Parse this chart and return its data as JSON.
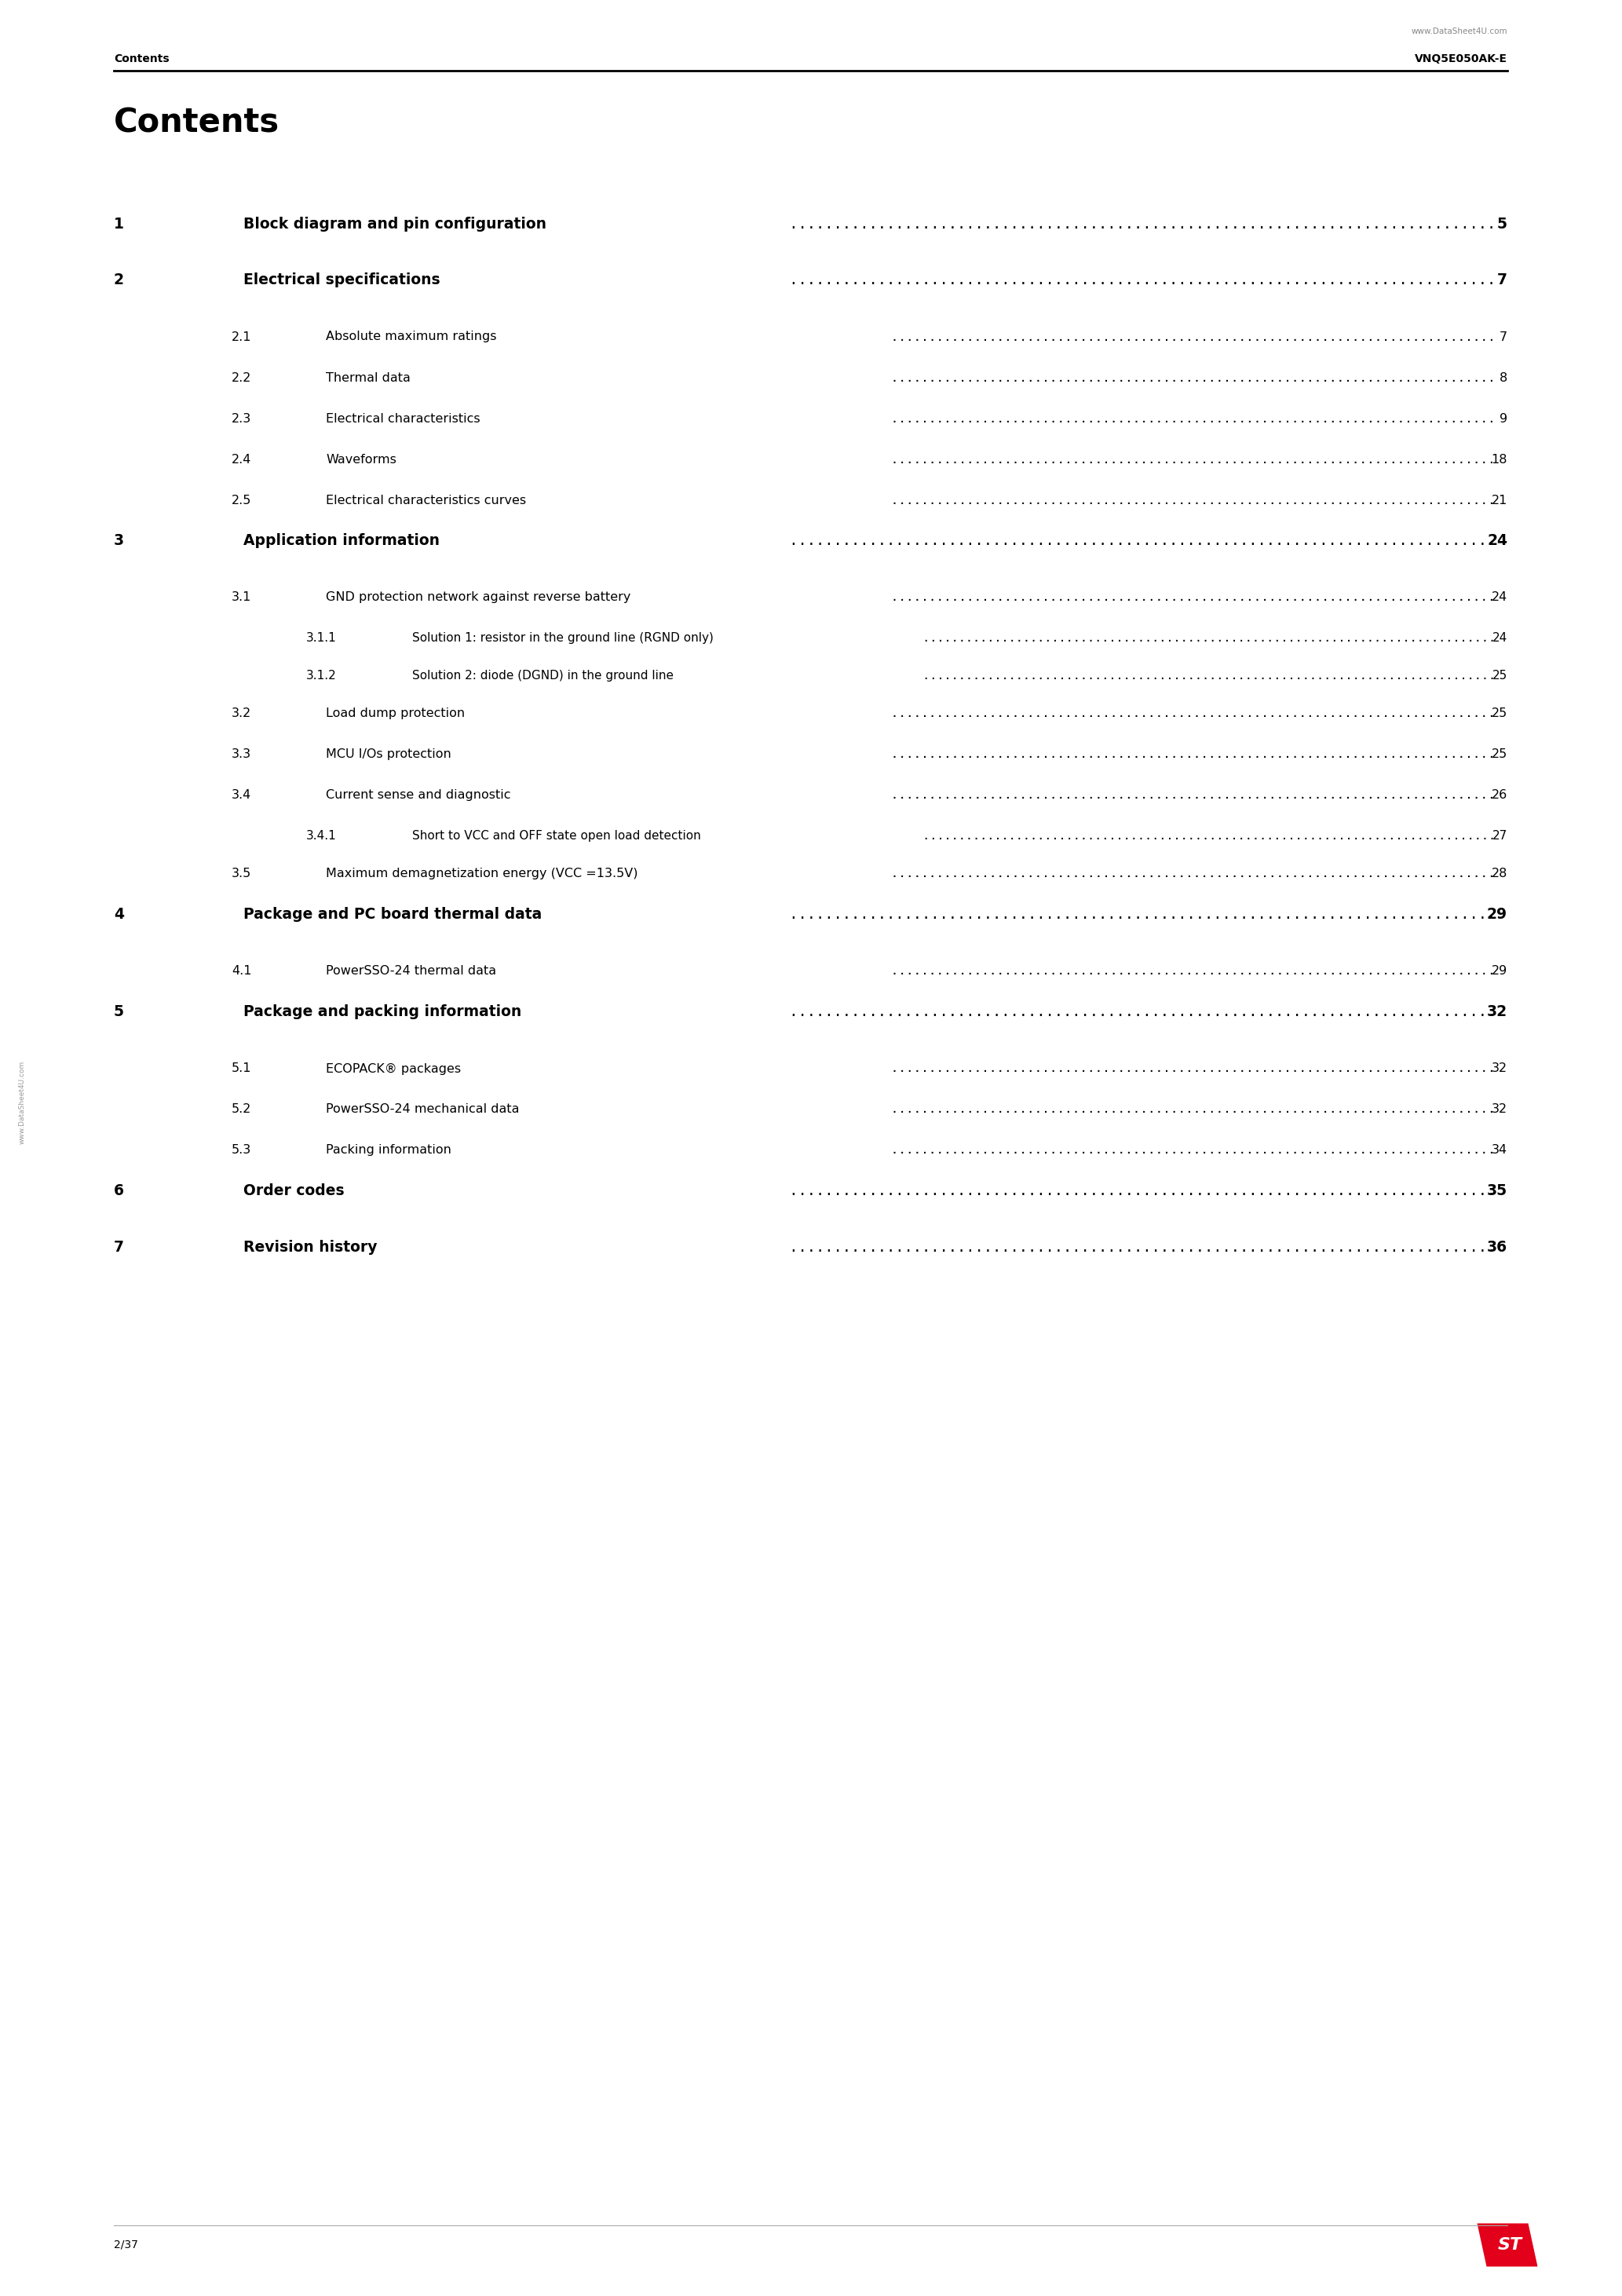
{
  "page_title": "Contents",
  "header_left": "Contents",
  "header_right": "VNQ5E050AK-E",
  "watermark_top": "www.DataSheet4U.com",
  "watermark_side": "www.DataSheet4U.com",
  "footer_left": "2/37",
  "background": "#ffffff",
  "text_color": "#000000",
  "toc_entries": [
    {
      "num": "1",
      "title": "Block diagram and pin configuration",
      "page": "5",
      "level": 1
    },
    {
      "num": "2",
      "title": "Electrical specifications",
      "page": "7",
      "level": 1
    },
    {
      "num": "2.1",
      "title": "Absolute maximum ratings",
      "page": "7",
      "level": 2
    },
    {
      "num": "2.2",
      "title": "Thermal data",
      "page": "8",
      "level": 2
    },
    {
      "num": "2.3",
      "title": "Electrical characteristics",
      "page": "9",
      "level": 2
    },
    {
      "num": "2.4",
      "title": "Waveforms",
      "page": "18",
      "level": 2
    },
    {
      "num": "2.5",
      "title": "Electrical characteristics curves",
      "page": "21",
      "level": 2
    },
    {
      "num": "3",
      "title": "Application information",
      "page": "24",
      "level": 1
    },
    {
      "num": "3.1",
      "title": "GND protection network against reverse battery",
      "page": "24",
      "level": 2
    },
    {
      "num": "3.1.1",
      "title": "Solution 1: resistor in the ground line (RGND only)",
      "page": "24",
      "level": 3
    },
    {
      "num": "3.1.2",
      "title": "Solution 2: diode (DGND) in the ground line",
      "page": "25",
      "level": 3
    },
    {
      "num": "3.2",
      "title": "Load dump protection",
      "page": "25",
      "level": 2
    },
    {
      "num": "3.3",
      "title": "MCU I/Os protection",
      "page": "25",
      "level": 2
    },
    {
      "num": "3.4",
      "title": "Current sense and diagnostic",
      "page": "26",
      "level": 2
    },
    {
      "num": "3.4.1",
      "title": "Short to VCC and OFF state open load detection",
      "page": "27",
      "level": 3
    },
    {
      "num": "3.5",
      "title": "Maximum demagnetization energy (VCC =13.5V)",
      "page": "28",
      "level": 2
    },
    {
      "num": "4",
      "title": "Package and PC board thermal data",
      "page": "29",
      "level": 1
    },
    {
      "num": "4.1",
      "title": "PowerSSO-24 thermal data",
      "page": "29",
      "level": 2
    },
    {
      "num": "5",
      "title": "Package and packing information",
      "page": "32",
      "level": 1
    },
    {
      "num": "5.1",
      "title": "ECOPACK® packages",
      "page": "32",
      "level": 2
    },
    {
      "num": "5.2",
      "title": "PowerSSO-24 mechanical data",
      "page": "32",
      "level": 2
    },
    {
      "num": "5.3",
      "title": "Packing information",
      "page": "34",
      "level": 2
    },
    {
      "num": "6",
      "title": "Order codes",
      "page": "35",
      "level": 1
    },
    {
      "num": "7",
      "title": "Revision history",
      "page": "36",
      "level": 1
    }
  ],
  "level1_sections": [
    "1",
    "2",
    "3",
    "4",
    "5",
    "6",
    "7"
  ]
}
